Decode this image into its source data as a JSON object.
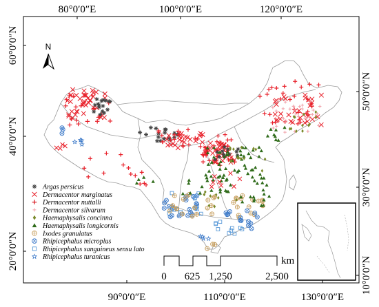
{
  "map": {
    "top_labels": [
      "80°0′0″E",
      "100°0′0″E",
      "120°0′0″E"
    ],
    "bottom_labels": [
      "90°0′0″E",
      "110°0′0″E",
      "130°0′0″E"
    ],
    "left_labels": [
      "60°0′0″N",
      "40°0′0″N",
      "20°0′0″N"
    ],
    "right_labels": [
      "50°0′0″N",
      "30°0′0″N",
      "10°0′0″N"
    ],
    "north_label": "N",
    "scale": {
      "unit": "km",
      "ticks": [
        "0",
        "625",
        "1,250",
        "2,500"
      ]
    },
    "colors": {
      "argas": "#444444",
      "red": "#e8202a",
      "pink": "#f0a0a8",
      "olive": "#7a8a2a",
      "green": "#2f6b1a",
      "tan": "#c8a060",
      "blue": "#3a78c8",
      "lightblue": "#5a9ad8",
      "border": "#999999"
    },
    "legend": [
      {
        "label": "Argas persicus",
        "symbol": "asterisk",
        "color": "#444444"
      },
      {
        "label": "Dermacentor marginatus",
        "symbol": "x",
        "color": "#e8202a"
      },
      {
        "label": "Dermacentor nuttalli",
        "symbol": "plus",
        "color": "#d81820"
      },
      {
        "label": "Dermacentor silvarum",
        "symbol": "plus-small",
        "color": "#f0a0a8"
      },
      {
        "label": "Haemaphysalis concinna",
        "symbol": "diamond",
        "color": "#7a8a2a"
      },
      {
        "label": "Haemaphysalis longicornis",
        "symbol": "triangle",
        "color": "#2f6b1a"
      },
      {
        "label": "Ixodes granulatus",
        "symbol": "circle-plus",
        "color": "#c8a060"
      },
      {
        "label": "Rhipicephalus microplus",
        "symbol": "circle-x",
        "color": "#3a78c8"
      },
      {
        "label": "Rhipicephalus sanguineus sensu lato",
        "symbol": "square",
        "color": "#5a9ad8"
      },
      {
        "label": "Rhipicephalus turanicus",
        "symbol": "star",
        "color": "#3a78c8"
      }
    ]
  }
}
